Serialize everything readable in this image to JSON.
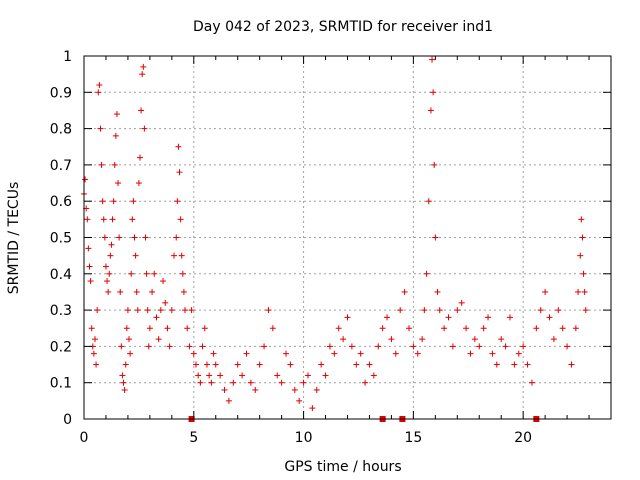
{
  "chart_data": {
    "type": "scatter",
    "title": "Day 042 of 2023, SRMTID for receiver ind1",
    "xlabel": "GPS time / hours",
    "ylabel": "SRMTID / TECUs",
    "xlim": [
      0,
      24
    ],
    "ylim": [
      0,
      1
    ],
    "xticks": [
      0,
      5,
      10,
      15,
      20
    ],
    "xtick_labels": [
      "0",
      "5",
      "10",
      "15",
      "20"
    ],
    "yticks": [
      0,
      0.1,
      0.2,
      0.3,
      0.4,
      0.5,
      0.6,
      0.7,
      0.8,
      0.9,
      1
    ],
    "ytick_labels": [
      "0",
      "0.1",
      "0.2",
      "0.3",
      "0.4",
      "0.5",
      "0.6",
      "0.7",
      "0.8",
      "0.9",
      "1"
    ],
    "grid": true,
    "marker": "+",
    "color": "#e00000",
    "zero_markers_x": [
      4.9,
      13.6,
      14.5,
      20.6
    ],
    "series": [
      {
        "name": "SRMTID",
        "points": [
          [
            0.0,
            0.62
          ],
          [
            0.05,
            0.66
          ],
          [
            0.1,
            0.58
          ],
          [
            0.15,
            0.55
          ],
          [
            0.2,
            0.47
          ],
          [
            0.25,
            0.42
          ],
          [
            0.3,
            0.38
          ],
          [
            0.35,
            0.25
          ],
          [
            0.4,
            0.2
          ],
          [
            0.45,
            0.18
          ],
          [
            0.5,
            0.22
          ],
          [
            0.55,
            0.15
          ],
          [
            0.6,
            0.3
          ],
          [
            0.65,
            0.9
          ],
          [
            0.7,
            0.92
          ],
          [
            0.75,
            0.8
          ],
          [
            0.8,
            0.7
          ],
          [
            0.85,
            0.6
          ],
          [
            0.9,
            0.55
          ],
          [
            0.95,
            0.5
          ],
          [
            1.0,
            0.42
          ],
          [
            1.05,
            0.38
          ],
          [
            1.1,
            0.35
          ],
          [
            1.15,
            0.4
          ],
          [
            1.2,
            0.45
          ],
          [
            1.25,
            0.48
          ],
          [
            1.3,
            0.55
          ],
          [
            1.35,
            0.6
          ],
          [
            1.4,
            0.7
          ],
          [
            1.45,
            0.78
          ],
          [
            1.5,
            0.84
          ],
          [
            1.55,
            0.65
          ],
          [
            1.6,
            0.5
          ],
          [
            1.65,
            0.35
          ],
          [
            1.7,
            0.2
          ],
          [
            1.75,
            0.12
          ],
          [
            1.8,
            0.1
          ],
          [
            1.85,
            0.08
          ],
          [
            1.9,
            0.15
          ],
          [
            1.95,
            0.25
          ],
          [
            2.0,
            0.3
          ],
          [
            2.05,
            0.22
          ],
          [
            2.1,
            0.18
          ],
          [
            2.15,
            0.4
          ],
          [
            2.2,
            0.55
          ],
          [
            2.25,
            0.6
          ],
          [
            2.3,
            0.5
          ],
          [
            2.35,
            0.45
          ],
          [
            2.4,
            0.35
          ],
          [
            2.45,
            0.3
          ],
          [
            2.5,
            0.65
          ],
          [
            2.55,
            0.72
          ],
          [
            2.6,
            0.85
          ],
          [
            2.65,
            0.95
          ],
          [
            2.7,
            0.97
          ],
          [
            2.75,
            0.8
          ],
          [
            2.8,
            0.5
          ],
          [
            2.85,
            0.4
          ],
          [
            2.9,
            0.3
          ],
          [
            2.95,
            0.2
          ],
          [
            3.0,
            0.25
          ],
          [
            3.1,
            0.35
          ],
          [
            3.2,
            0.4
          ],
          [
            3.3,
            0.28
          ],
          [
            3.4,
            0.22
          ],
          [
            3.5,
            0.3
          ],
          [
            3.6,
            0.38
          ],
          [
            3.7,
            0.32
          ],
          [
            3.8,
            0.25
          ],
          [
            3.9,
            0.2
          ],
          [
            4.0,
            0.3
          ],
          [
            4.1,
            0.45
          ],
          [
            4.2,
            0.5
          ],
          [
            4.25,
            0.6
          ],
          [
            4.3,
            0.75
          ],
          [
            4.35,
            0.68
          ],
          [
            4.4,
            0.55
          ],
          [
            4.45,
            0.45
          ],
          [
            4.5,
            0.4
          ],
          [
            4.55,
            0.35
          ],
          [
            4.6,
            0.3
          ],
          [
            4.7,
            0.25
          ],
          [
            4.8,
            0.2
          ],
          [
            4.9,
            0.3
          ],
          [
            5.0,
            0.18
          ],
          [
            5.1,
            0.15
          ],
          [
            5.2,
            0.12
          ],
          [
            5.3,
            0.1
          ],
          [
            5.4,
            0.2
          ],
          [
            5.5,
            0.25
          ],
          [
            5.6,
            0.15
          ],
          [
            5.7,
            0.12
          ],
          [
            5.8,
            0.1
          ],
          [
            5.9,
            0.18
          ],
          [
            6.0,
            0.15
          ],
          [
            6.2,
            0.12
          ],
          [
            6.4,
            0.08
          ],
          [
            6.6,
            0.05
          ],
          [
            6.8,
            0.1
          ],
          [
            7.0,
            0.15
          ],
          [
            7.2,
            0.12
          ],
          [
            7.4,
            0.18
          ],
          [
            7.6,
            0.1
          ],
          [
            7.8,
            0.08
          ],
          [
            8.0,
            0.15
          ],
          [
            8.2,
            0.2
          ],
          [
            8.4,
            0.3
          ],
          [
            8.6,
            0.25
          ],
          [
            8.8,
            0.12
          ],
          [
            9.0,
            0.1
          ],
          [
            9.2,
            0.18
          ],
          [
            9.4,
            0.15
          ],
          [
            9.6,
            0.08
          ],
          [
            9.8,
            0.05
          ],
          [
            10.0,
            0.1
          ],
          [
            10.2,
            0.12
          ],
          [
            10.4,
            0.03
          ],
          [
            10.6,
            0.08
          ],
          [
            10.8,
            0.15
          ],
          [
            11.0,
            0.12
          ],
          [
            11.2,
            0.2
          ],
          [
            11.4,
            0.18
          ],
          [
            11.6,
            0.25
          ],
          [
            11.8,
            0.22
          ],
          [
            12.0,
            0.28
          ],
          [
            12.2,
            0.2
          ],
          [
            12.4,
            0.15
          ],
          [
            12.6,
            0.18
          ],
          [
            12.8,
            0.1
          ],
          [
            13.0,
            0.15
          ],
          [
            13.2,
            0.12
          ],
          [
            13.4,
            0.2
          ],
          [
            13.6,
            0.25
          ],
          [
            13.8,
            0.28
          ],
          [
            14.0,
            0.22
          ],
          [
            14.2,
            0.18
          ],
          [
            14.4,
            0.3
          ],
          [
            14.6,
            0.35
          ],
          [
            14.8,
            0.25
          ],
          [
            15.0,
            0.2
          ],
          [
            15.2,
            0.18
          ],
          [
            15.4,
            0.22
          ],
          [
            15.5,
            0.3
          ],
          [
            15.6,
            0.4
          ],
          [
            15.7,
            0.6
          ],
          [
            15.8,
            0.85
          ],
          [
            15.85,
            0.99
          ],
          [
            15.9,
            0.9
          ],
          [
            15.95,
            0.7
          ],
          [
            16.0,
            0.5
          ],
          [
            16.1,
            0.35
          ],
          [
            16.2,
            0.3
          ],
          [
            16.4,
            0.25
          ],
          [
            16.6,
            0.28
          ],
          [
            16.8,
            0.2
          ],
          [
            17.0,
            0.3
          ],
          [
            17.2,
            0.32
          ],
          [
            17.4,
            0.25
          ],
          [
            17.6,
            0.18
          ],
          [
            17.8,
            0.22
          ],
          [
            18.0,
            0.2
          ],
          [
            18.2,
            0.25
          ],
          [
            18.4,
            0.28
          ],
          [
            18.6,
            0.18
          ],
          [
            18.8,
            0.15
          ],
          [
            19.0,
            0.22
          ],
          [
            19.2,
            0.2
          ],
          [
            19.4,
            0.28
          ],
          [
            19.6,
            0.15
          ],
          [
            19.8,
            0.18
          ],
          [
            20.0,
            0.2
          ],
          [
            20.2,
            0.15
          ],
          [
            20.4,
            0.1
          ],
          [
            20.6,
            0.25
          ],
          [
            20.8,
            0.3
          ],
          [
            21.0,
            0.35
          ],
          [
            21.2,
            0.28
          ],
          [
            21.4,
            0.22
          ],
          [
            21.6,
            0.3
          ],
          [
            21.8,
            0.25
          ],
          [
            22.0,
            0.2
          ],
          [
            22.2,
            0.15
          ],
          [
            22.4,
            0.25
          ],
          [
            22.5,
            0.35
          ],
          [
            22.6,
            0.45
          ],
          [
            22.65,
            0.55
          ],
          [
            22.7,
            0.5
          ],
          [
            22.75,
            0.4
          ],
          [
            22.8,
            0.35
          ],
          [
            22.85,
            0.3
          ]
        ]
      }
    ]
  }
}
